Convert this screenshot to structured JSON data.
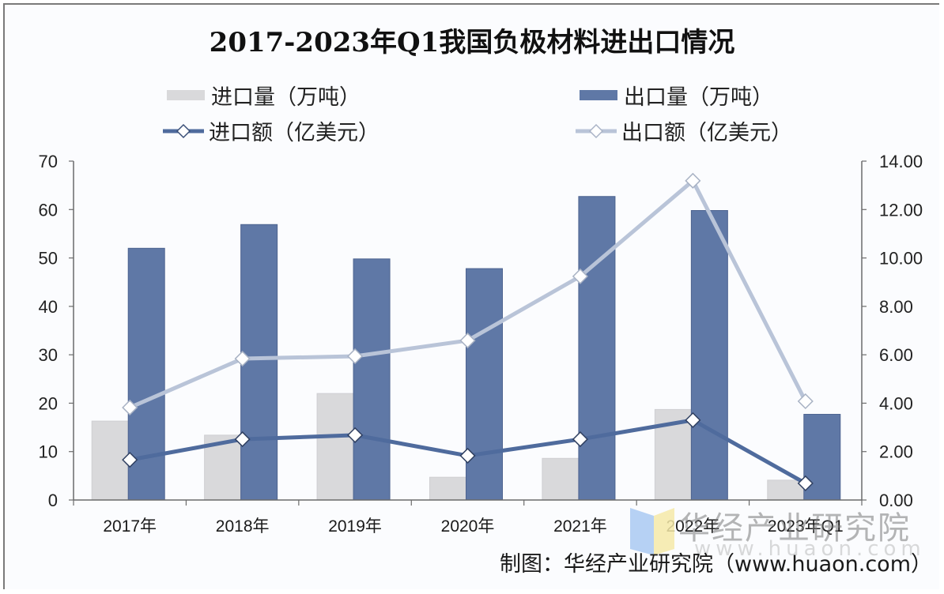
{
  "title": "2017-2023年Q1我国负极材料进出口情况",
  "legend": [
    {
      "label": "进口量（万吨）",
      "type": "bar",
      "color": "#d9d9db"
    },
    {
      "label": "出口量（万吨）",
      "type": "bar",
      "color": "#5f78a6"
    },
    {
      "label": "进口额（亿美元）",
      "type": "line",
      "color": "#4f6b9d"
    },
    {
      "label": "出口额（亿美元）",
      "type": "line",
      "color": "#b9c4d8"
    }
  ],
  "left_axis_ticks": [
    "0",
    "10",
    "20",
    "30",
    "40",
    "50",
    "60",
    "70"
  ],
  "right_axis_ticks": [
    "0.00",
    "2.00",
    "4.00",
    "6.00",
    "8.00",
    "10.00",
    "12.00",
    "14.00"
  ],
  "credit": "制图：华经产业研究院（www.huaon.com）",
  "watermark": {
    "text": "华经产业研究院",
    "url": "www.huaon.com"
  },
  "chart_data": {
    "type": "bar",
    "title": "2017-2023年Q1我国负极材料进出口情况",
    "categories": [
      "2017年",
      "2018年",
      "2019年",
      "2020年",
      "2021年",
      "2022年",
      "2023年Q1"
    ],
    "series": [
      {
        "name": "进口量（万吨）",
        "type": "bar",
        "axis": "left",
        "color": "#d9d9db",
        "values": [
          16.3,
          13.4,
          22.0,
          4.7,
          8.6,
          18.7,
          4.1
        ]
      },
      {
        "name": "出口量（万吨）",
        "type": "bar",
        "axis": "left",
        "color": "#5f78a6",
        "values": [
          52.0,
          56.9,
          49.8,
          47.8,
          62.7,
          59.8,
          17.7
        ]
      },
      {
        "name": "进口额（亿美元）",
        "type": "line",
        "axis": "right",
        "color": "#4f6b9d",
        "values": [
          1.66,
          2.51,
          2.68,
          1.83,
          2.51,
          3.3,
          0.69
        ]
      },
      {
        "name": "出口额（亿美元）",
        "type": "line",
        "axis": "right",
        "color": "#b9c4d8",
        "values": [
          3.82,
          5.84,
          5.94,
          6.59,
          9.24,
          13.19,
          4.08
        ]
      }
    ],
    "xlabel": "",
    "ylabel": "",
    "ylim": [
      0,
      70
    ],
    "y2lim": [
      0,
      14
    ],
    "grid": false,
    "legend_position": "top"
  }
}
